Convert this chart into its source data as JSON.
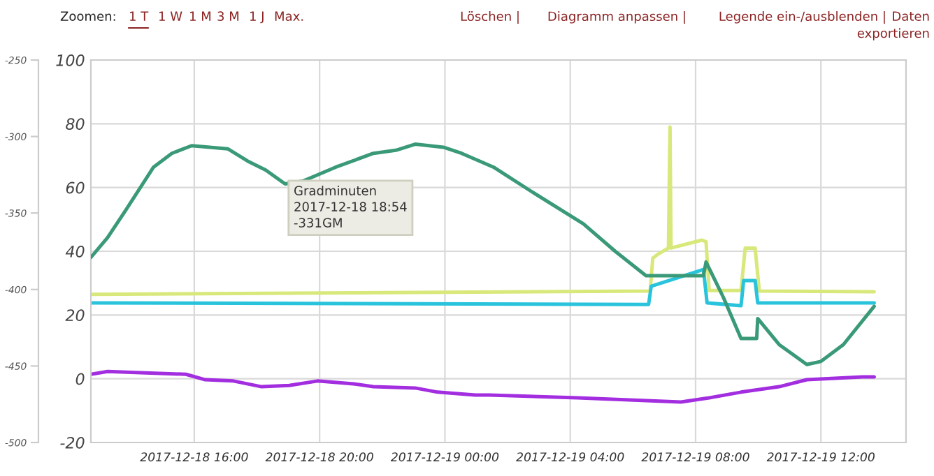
{
  "chart_data": {
    "type": "line",
    "xlim": [
      "2017-12-18T12:42",
      "2017-12-19T14:43"
    ],
    "xticks": [
      {
        "value": "2017-12-18T16:00",
        "label": "2017-12-18 16:00"
      },
      {
        "value": "2017-12-18T20:00",
        "label": "2017-12-18 20:00"
      },
      {
        "value": "2017-12-19T00:00",
        "label": "2017-12-19 00:00"
      },
      {
        "value": "2017-12-19T04:00",
        "label": "2017-12-19 04:00"
      },
      {
        "value": "2017-12-19T08:00",
        "label": "2017-12-19 08:00"
      },
      {
        "value": "2017-12-19T12:00",
        "label": "2017-12-19 12:00"
      }
    ],
    "ylim": [
      -20,
      100
    ],
    "yticks": [
      -20,
      0,
      20,
      40,
      60,
      80,
      100
    ],
    "y2lim": [
      -500,
      -250
    ],
    "y2ticks": [
      -500,
      -450,
      -400,
      -350,
      -300,
      -250
    ],
    "grid": true,
    "legend": false,
    "marker": "none",
    "line_style": "solid",
    "series": [
      {
        "color": "#d9e87a",
        "x": [
          "2017-12-18T12:42",
          "2017-12-19T06:33",
          "2017-12-19T06:38",
          "2017-12-19T06:47",
          "2017-12-19T07:08",
          "2017-12-19T07:11",
          "2017-12-19T07:13",
          "2017-12-19T08:12",
          "2017-12-19T08:20",
          "2017-12-19T08:26",
          "2017-12-19T09:27",
          "2017-12-19T09:35",
          "2017-12-19T09:54",
          "2017-12-19T10:02",
          "2017-12-19T13:42"
        ],
        "values": [
          26.5,
          27.5,
          37.8,
          39,
          41,
          79,
          41,
          43.5,
          43,
          27.7,
          27.7,
          41,
          41,
          27.5,
          27.3
        ]
      },
      {
        "color": "#29c3dc",
        "x": [
          "2017-12-18T12:42",
          "2017-12-19T06:30",
          "2017-12-19T06:35",
          "2017-12-19T08:15",
          "2017-12-19T08:22",
          "2017-12-19T09:27",
          "2017-12-19T09:32",
          "2017-12-19T09:54",
          "2017-12-19T09:59",
          "2017-12-19T13:42"
        ],
        "values": [
          23.8,
          23.3,
          29,
          34.3,
          23.8,
          22.9,
          30.8,
          30.8,
          23.8,
          23.8
        ]
      },
      {
        "color": "#a22ee0",
        "x": [
          "2017-12-18T12:42",
          "2017-12-18T13:14",
          "2017-12-18T15:44",
          "2017-12-18T16:21",
          "2017-12-18T17:15",
          "2017-12-18T18:09",
          "2017-12-18T19:02",
          "2017-12-18T19:56",
          "2017-12-18T21:05",
          "2017-12-18T21:43",
          "2017-12-18T23:03",
          "2017-12-18T23:46",
          "2017-12-19T00:58",
          "2017-12-19T01:25",
          "2017-12-19T04:14",
          "2017-12-19T07:32",
          "2017-12-19T08:26",
          "2017-12-19T09:27",
          "2017-12-19T10:40",
          "2017-12-19T11:33",
          "2017-12-19T13:20",
          "2017-12-19T13:42"
        ],
        "values": [
          1.4,
          2.3,
          1.4,
          -0.3,
          -0.7,
          -2.5,
          -2.1,
          -0.7,
          -1.6,
          -2.5,
          -2.9,
          -4.2,
          -5.1,
          -5.1,
          -6,
          -7.3,
          -6,
          -4.2,
          -2.5,
          -0.3,
          0.6,
          0.6
        ]
      },
      {
        "color": "#3a9a78",
        "axis": "y2",
        "x": [
          "2017-12-18T12:42",
          "2017-12-18T13:14",
          "2017-12-18T13:49",
          "2017-12-18T14:42",
          "2017-12-18T15:17",
          "2017-12-18T15:55",
          "2017-12-18T17:04",
          "2017-12-18T17:42",
          "2017-12-18T18:17",
          "2017-12-18T18:54",
          "2017-12-18T19:29",
          "2017-12-18T20:31",
          "2017-12-18T21:43",
          "2017-12-18T22:26",
          "2017-12-18T23:03",
          "2017-12-18T23:57",
          "2017-12-19T00:32",
          "2017-12-19T01:33",
          "2017-12-19T02:46",
          "2017-12-19T04:25",
          "2017-12-19T05:26",
          "2017-12-19T06:25",
          "2017-12-19T08:15",
          "2017-12-19T08:20",
          "2017-12-19T08:53",
          "2017-12-19T09:27",
          "2017-12-19T09:57",
          "2017-12-19T09:59",
          "2017-12-19T10:40",
          "2017-12-19T11:33",
          "2017-12-19T12:00",
          "2017-12-19T12:43",
          "2017-12-19T13:42"
        ],
        "values": [
          -379,
          -366,
          -348,
          -320,
          -311,
          -306,
          -308,
          -316,
          -322,
          -331,
          -329,
          -320,
          -311,
          -309,
          -305,
          -307,
          -311,
          -320,
          -336,
          -357,
          -375,
          -391,
          -391,
          -382,
          -405,
          -432,
          -432,
          -419,
          -436,
          -449,
          -447,
          -436,
          -411
        ]
      }
    ],
    "annotations": [
      "Zoomen:",
      "1 T",
      "1 W",
      "1 M",
      "3 M",
      "1 J",
      "Max.",
      "Löschen |",
      "Diagramm anpassen |",
      "Legende ein-/ausblenden |",
      "Daten\nexportieren",
      "Gradminuten\n2017-12-18 18:54\n-331GM"
    ]
  }
}
